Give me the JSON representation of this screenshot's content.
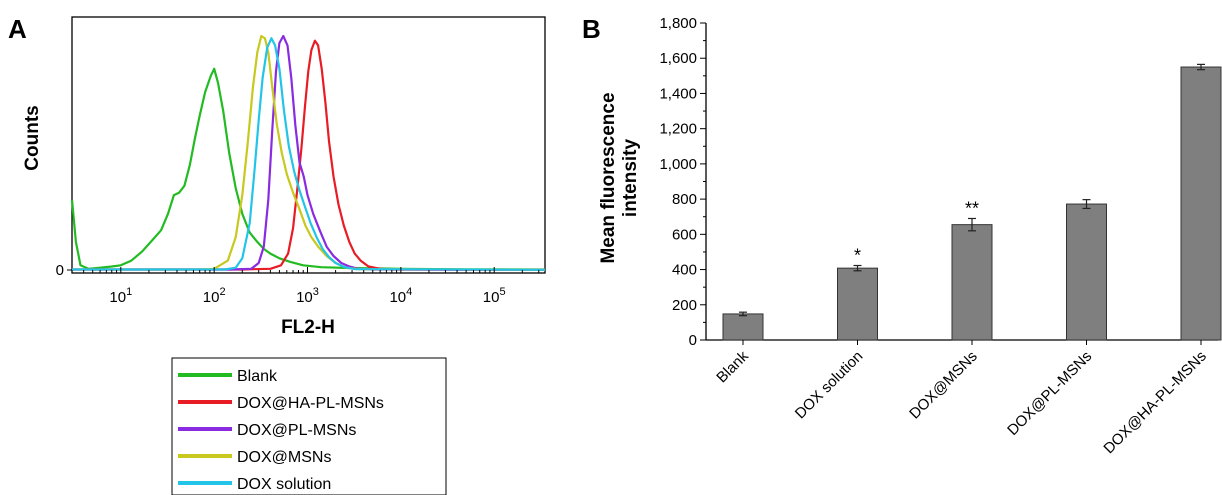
{
  "panels": {
    "a_label": "A",
    "b_label": "B"
  },
  "chart_data": [
    {
      "type": "line",
      "panel": "A",
      "xlabel": "FL2-H",
      "ylabel": "Counts",
      "x_scale": "log",
      "xlim": [
        3,
        350000
      ],
      "ylim": [
        0,
        1.0
      ],
      "y_tick_labels": [
        {
          "value": 0,
          "label": "0"
        }
      ],
      "x_tick_labels": [
        {
          "value": 10,
          "base": "10",
          "exp": "1"
        },
        {
          "value": 100,
          "base": "10",
          "exp": "2"
        },
        {
          "value": 1000,
          "base": "10",
          "exp": "3"
        },
        {
          "value": 10000,
          "base": "10",
          "exp": "4"
        },
        {
          "value": 100000,
          "base": "10",
          "exp": "5"
        }
      ],
      "legend_position": "bottom",
      "series": [
        {
          "name": "Blank",
          "color": "#22bb22",
          "points": [
            [
              3,
              0.3
            ],
            [
              3.3,
              0.12
            ],
            [
              3.7,
              0.02
            ],
            [
              4.5,
              0.005
            ],
            [
              6,
              0.01
            ],
            [
              8,
              0.015
            ],
            [
              10,
              0.02
            ],
            [
              13,
              0.04
            ],
            [
              17,
              0.08
            ],
            [
              22,
              0.13
            ],
            [
              27,
              0.17
            ],
            [
              32,
              0.24
            ],
            [
              37,
              0.32
            ],
            [
              42,
              0.33
            ],
            [
              48,
              0.36
            ],
            [
              55,
              0.45
            ],
            [
              62,
              0.56
            ],
            [
              70,
              0.66
            ],
            [
              80,
              0.76
            ],
            [
              92,
              0.83
            ],
            [
              100,
              0.86
            ],
            [
              110,
              0.8
            ],
            [
              125,
              0.68
            ],
            [
              145,
              0.5
            ],
            [
              170,
              0.35
            ],
            [
              200,
              0.24
            ],
            [
              240,
              0.16
            ],
            [
              290,
              0.12
            ],
            [
              340,
              0.09
            ],
            [
              400,
              0.07
            ],
            [
              500,
              0.05
            ],
            [
              650,
              0.035
            ],
            [
              900,
              0.02
            ],
            [
              1400,
              0.012
            ],
            [
              3000,
              0.008
            ],
            [
              10000,
              0.005
            ],
            [
              50000,
              0.003
            ],
            [
              350000,
              0.002
            ]
          ]
        },
        {
          "name": "DOX@HA-PL-MSNs",
          "color": "#e81c24",
          "points": [
            [
              3,
              0.002
            ],
            [
              200,
              0.002
            ],
            [
              400,
              0.005
            ],
            [
              520,
              0.02
            ],
            [
              620,
              0.07
            ],
            [
              700,
              0.18
            ],
            [
              780,
              0.35
            ],
            [
              860,
              0.52
            ],
            [
              940,
              0.7
            ],
            [
              1020,
              0.85
            ],
            [
              1100,
              0.94
            ],
            [
              1200,
              0.98
            ],
            [
              1300,
              0.96
            ],
            [
              1420,
              0.86
            ],
            [
              1550,
              0.72
            ],
            [
              1700,
              0.55
            ],
            [
              1900,
              0.4
            ],
            [
              2150,
              0.28
            ],
            [
              2450,
              0.19
            ],
            [
              2800,
              0.12
            ],
            [
              3200,
              0.07
            ],
            [
              3700,
              0.04
            ],
            [
              4500,
              0.015
            ],
            [
              6000,
              0.005
            ],
            [
              8000,
              0.002
            ],
            [
              350000,
              0.001
            ]
          ]
        },
        {
          "name": "DOX@PL-MSNs",
          "color": "#8a2be2",
          "points": [
            [
              3,
              0.002
            ],
            [
              150,
              0.002
            ],
            [
              250,
              0.005
            ],
            [
              300,
              0.03
            ],
            [
              340,
              0.1
            ],
            [
              380,
              0.3
            ],
            [
              420,
              0.6
            ],
            [
              460,
              0.85
            ],
            [
              500,
              0.97
            ],
            [
              550,
              1.0
            ],
            [
              610,
              0.96
            ],
            [
              670,
              0.82
            ],
            [
              740,
              0.62
            ],
            [
              820,
              0.46
            ],
            [
              910,
              0.4
            ],
            [
              1000,
              0.32
            ],
            [
              1150,
              0.24
            ],
            [
              1350,
              0.17
            ],
            [
              1600,
              0.1
            ],
            [
              1900,
              0.06
            ],
            [
              2300,
              0.03
            ],
            [
              2800,
              0.015
            ],
            [
              3500,
              0.005
            ],
            [
              5000,
              0.002
            ],
            [
              350000,
              0.001
            ]
          ]
        },
        {
          "name": "DOX@MSNs",
          "color": "#c8c81e",
          "points": [
            [
              3,
              0.002
            ],
            [
              70,
              0.002
            ],
            [
              100,
              0.005
            ],
            [
              140,
              0.04
            ],
            [
              170,
              0.14
            ],
            [
              200,
              0.32
            ],
            [
              230,
              0.55
            ],
            [
              260,
              0.78
            ],
            [
              290,
              0.93
            ],
            [
              320,
              1.0
            ],
            [
              350,
              0.99
            ],
            [
              380,
              0.93
            ],
            [
              420,
              0.78
            ],
            [
              470,
              0.62
            ],
            [
              530,
              0.5
            ],
            [
              600,
              0.41
            ],
            [
              700,
              0.33
            ],
            [
              820,
              0.26
            ],
            [
              950,
              0.19
            ],
            [
              1100,
              0.14
            ],
            [
              1300,
              0.1
            ],
            [
              1600,
              0.06
            ],
            [
              2000,
              0.03
            ],
            [
              2600,
              0.01
            ],
            [
              3500,
              0.004
            ],
            [
              350000,
              0.001
            ]
          ]
        },
        {
          "name": "DOX solution",
          "color": "#22c4e8",
          "points": [
            [
              3,
              0.002
            ],
            [
              130,
              0.002
            ],
            [
              170,
              0.01
            ],
            [
              200,
              0.05
            ],
            [
              240,
              0.2
            ],
            [
              270,
              0.42
            ],
            [
              300,
              0.64
            ],
            [
              330,
              0.82
            ],
            [
              370,
              0.95
            ],
            [
              410,
              0.99
            ],
            [
              450,
              0.96
            ],
            [
              500,
              0.86
            ],
            [
              560,
              0.68
            ],
            [
              630,
              0.53
            ],
            [
              720,
              0.42
            ],
            [
              820,
              0.34
            ],
            [
              940,
              0.27
            ],
            [
              1080,
              0.2
            ],
            [
              1250,
              0.14
            ],
            [
              1450,
              0.09
            ],
            [
              1700,
              0.055
            ],
            [
              2000,
              0.03
            ],
            [
              2500,
              0.012
            ],
            [
              3200,
              0.004
            ],
            [
              350000,
              0.001
            ]
          ]
        }
      ]
    },
    {
      "type": "bar",
      "panel": "B",
      "ylabel_line1": "Mean fluorescence",
      "ylabel_line2": "intensity",
      "ylim": [
        0,
        1800
      ],
      "y_ticks": [
        0,
        200,
        400,
        600,
        800,
        1000,
        1200,
        1400,
        1600,
        1800
      ],
      "y_tick_labels": [
        "0",
        "200",
        "400",
        "600",
        "800",
        "1,000",
        "1,200",
        "1,400",
        "1,600",
        "1,800"
      ],
      "categories": [
        "Blank",
        "DOX solution",
        "DOX@MSNs",
        "DOX@PL-MSNs",
        "DOX@HA-PL-MSNs"
      ],
      "values": [
        148,
        408,
        655,
        772,
        1550
      ],
      "errors": [
        10,
        15,
        35,
        25,
        15
      ],
      "annotations": [
        "",
        "*",
        "**",
        "",
        ""
      ],
      "bar_color": "#7f7f7f"
    }
  ]
}
